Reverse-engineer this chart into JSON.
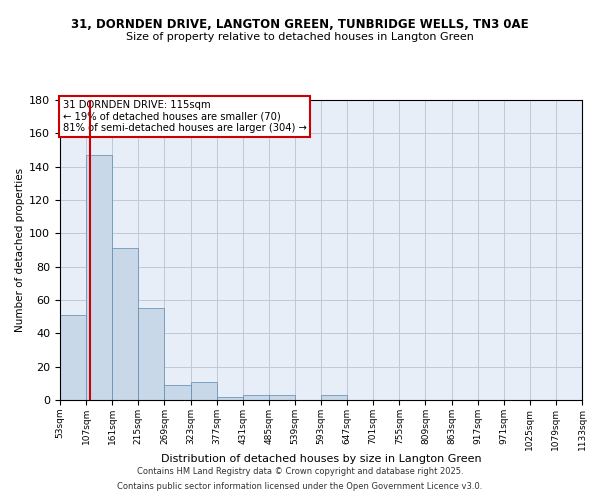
{
  "title1": "31, DORNDEN DRIVE, LANGTON GREEN, TUNBRIDGE WELLS, TN3 0AE",
  "title2": "Size of property relative to detached houses in Langton Green",
  "xlabel": "Distribution of detached houses by size in Langton Green",
  "ylabel": "Number of detached properties",
  "categories": [
    "53sqm",
    "107sqm",
    "161sqm",
    "215sqm",
    "269sqm",
    "323sqm",
    "377sqm",
    "431sqm",
    "485sqm",
    "539sqm",
    "593sqm",
    "647sqm",
    "701sqm",
    "755sqm",
    "809sqm",
    "863sqm",
    "917sqm",
    "971sqm",
    "1025sqm",
    "1079sqm",
    "1133sqm"
  ],
  "bar_values": [
    51,
    147,
    91,
    55,
    9,
    11,
    2,
    3,
    3,
    0,
    3,
    0,
    0,
    0,
    0,
    0,
    0,
    0,
    0,
    0
  ],
  "bar_color": "#c8d8e8",
  "bar_edge_color": "#5a8ab0",
  "property_size": 115,
  "red_line_color": "#cc0000",
  "annotation_line1": "31 DORNDEN DRIVE: 115sqm",
  "annotation_line2": "← 19% of detached houses are smaller (70)",
  "annotation_line3": "81% of semi-detached houses are larger (304) →",
  "annotation_box_color": "#cc0000",
  "ylim": [
    0,
    180
  ],
  "yticks": [
    0,
    20,
    40,
    60,
    80,
    100,
    120,
    140,
    160,
    180
  ],
  "grid_color": "#c0c8d8",
  "bg_color": "#e8eef8",
  "footer1": "Contains HM Land Registry data © Crown copyright and database right 2025.",
  "footer2": "Contains public sector information licensed under the Open Government Licence v3.0.",
  "title1_fontsize": 8.5,
  "title2_fontsize": 8,
  "xlabel_fontsize": 8,
  "ylabel_fontsize": 7.5,
  "ytick_fontsize": 8,
  "xtick_fontsize": 6.5,
  "footer_fontsize": 6
}
